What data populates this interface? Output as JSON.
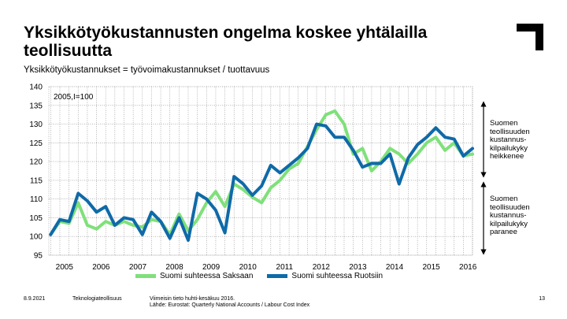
{
  "header": {
    "title": "Yksikkötyökustannusten ongelma koskee yhtälailla teollisuutta",
    "subtitle": "Yksikkötyökustannukset = työvoimakustannukset / tuottavuus"
  },
  "annotations": {
    "upper": "Suomen teollisuuden kustannus-kilpailukyky heikkenee",
    "lower": "Suomen teollisuuden kustannus-kilpailukyky paranee"
  },
  "footer": {
    "date": "8.9.2021",
    "org": "Teknologiateollisuus",
    "source_line1": "Viimeisin tieto huhti-kesäkuu 2016.",
    "source_line2": "Lähde: Eurostat: Quarterly National Accounts / Labour Cost Index",
    "page": "13"
  },
  "colors": {
    "germany": "#7fe07a",
    "sweden": "#0f6aa8",
    "grid": "#8a8a8a",
    "logo": "#000000"
  },
  "chart_data": {
    "type": "line",
    "title": "Yksikkötyökustannukset",
    "base_label": "2005,I=100",
    "ylim": [
      95,
      140
    ],
    "yticks": [
      95,
      100,
      105,
      110,
      115,
      120,
      125,
      130,
      135,
      140
    ],
    "x_start": 2005.0,
    "x_step": 0.25,
    "x_range": [
      2004.95,
      2016.5
    ],
    "year_labels": [
      "2005",
      "2006",
      "2007",
      "2008",
      "2009",
      "2010",
      "2011",
      "2012",
      "2013",
      "2014",
      "2015",
      "2016"
    ],
    "series": [
      {
        "name": "Suomi suhteessa Saksaan",
        "color": "#7fe07a",
        "values": [
          100.5,
          104.0,
          103.5,
          109.0,
          103.0,
          102.0,
          104.0,
          103.0,
          104.0,
          103.0,
          102.5,
          104.5,
          104.0,
          100.5,
          106.0,
          101.5,
          104.5,
          109.0,
          112.0,
          108.0,
          114.0,
          112.5,
          110.5,
          109.0,
          113.0,
          115.0,
          118.0,
          119.5,
          124.0,
          128.5,
          132.5,
          133.5,
          130.0,
          122.0,
          123.5,
          117.5,
          120.0,
          123.5,
          122.0,
          119.5,
          122.0,
          125.0,
          126.5,
          123.0,
          125.0,
          121.5,
          122.0
        ]
      },
      {
        "name": "Suomi suhteessa Ruotsiin",
        "color": "#0f6aa8",
        "values": [
          100.5,
          104.5,
          104.0,
          111.5,
          109.5,
          106.5,
          108.0,
          103.0,
          105.0,
          104.5,
          100.5,
          106.5,
          104.0,
          99.5,
          105.0,
          99.0,
          111.5,
          110.0,
          107.0,
          101.0,
          116.0,
          114.0,
          111.0,
          113.5,
          119.0,
          117.0,
          119.0,
          121.0,
          123.5,
          130.0,
          129.5,
          126.5,
          126.5,
          123.0,
          118.5,
          119.5,
          119.5,
          122.0,
          114.0,
          121.0,
          124.5,
          126.5,
          129.0,
          126.5,
          126.0,
          121.5,
          123.5
        ]
      }
    ]
  }
}
